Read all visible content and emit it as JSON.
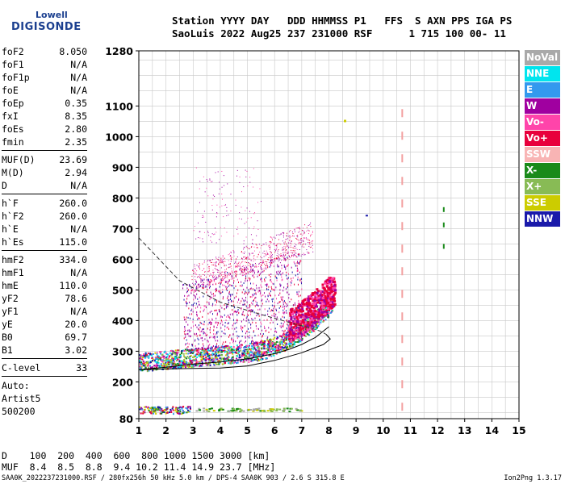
{
  "logo": {
    "line1": "Lowell",
    "line2": "DIGISONDE"
  },
  "header": {
    "line1": "Station YYYY DAY   DDD HHMMSS P1   FFS  S AXN PPS IGA PS",
    "line2": "SaoLuis 2022 Aug25 237 231000 RSF      1 715 100 00- 11"
  },
  "params": {
    "group1": [
      {
        "k": "foF2",
        "v": "8.050"
      },
      {
        "k": "foF1",
        "v": "N/A"
      },
      {
        "k": "foF1p",
        "v": "N/A"
      },
      {
        "k": "foE",
        "v": "N/A"
      },
      {
        "k": "foEp",
        "v": "0.35"
      },
      {
        "k": "fxI",
        "v": "8.35"
      },
      {
        "k": "foEs",
        "v": "2.80"
      },
      {
        "k": "fmin",
        "v": "2.35"
      }
    ],
    "group2": [
      {
        "k": "MUF(D)",
        "v": "23.69"
      },
      {
        "k": "M(D)",
        "v": "2.94"
      },
      {
        "k": "D",
        "v": "N/A"
      }
    ],
    "group3": [
      {
        "k": "h`F",
        "v": "260.0"
      },
      {
        "k": "h`F2",
        "v": "260.0"
      },
      {
        "k": "h`E",
        "v": "N/A"
      },
      {
        "k": "h`Es",
        "v": "115.0"
      }
    ],
    "group4": [
      {
        "k": "hmF2",
        "v": "334.0"
      },
      {
        "k": "hmF1",
        "v": "N/A"
      },
      {
        "k": "hmE",
        "v": "110.0"
      },
      {
        "k": "yF2",
        "v": "78.6"
      },
      {
        "k": "yF1",
        "v": "N/A"
      },
      {
        "k": "yE",
        "v": "20.0"
      },
      {
        "k": "B0",
        "v": "69.7"
      },
      {
        "k": "B1",
        "v": "3.02"
      }
    ],
    "group5": [
      {
        "k": "C-level",
        "v": "33"
      }
    ],
    "auto": [
      "Auto:",
      "Artist5",
      "500200"
    ]
  },
  "legend": [
    {
      "label": "NoVal",
      "color": "#a9a9a9"
    },
    {
      "label": "NNE",
      "color": "#00e5ee"
    },
    {
      "label": "E",
      "color": "#3399ee"
    },
    {
      "label": "W",
      "color": "#a000a0"
    },
    {
      "label": "Vo-",
      "color": "#ff44aa"
    },
    {
      "label": "Vo+",
      "color": "#e8003c"
    },
    {
      "label": "SSW",
      "color": "#f8b4b4"
    },
    {
      "label": "X-",
      "color": "#1a8a1a"
    },
    {
      "label": "X+",
      "color": "#88bb55"
    },
    {
      "label": "SSE",
      "color": "#cccc00"
    },
    {
      "label": "NNW",
      "color": "#1a1aaa"
    }
  ],
  "muf_table": {
    "line1": "D    100  200  400  600  800 1000 1500 3000 [km]",
    "line2": "MUF  8.4  8.5  8.8  9.4 10.2 11.4 14.9 23.7 [MHz]"
  },
  "footer": {
    "left": "SAA0K_2022237231000.RSF / 280fx256h 50 kHz 5.0 km / DPS-4 SAA0K 903 / 2.6 S 315.8 E",
    "right": "Ion2Png 1.3.17"
  },
  "chart_data": {
    "type": "scatter",
    "x_range": [
      1,
      15
    ],
    "y_range": [
      80,
      1280
    ],
    "x_ticks": [
      1,
      2,
      3,
      4,
      5,
      6,
      7,
      8,
      9,
      10,
      11,
      12,
      13,
      14,
      15
    ],
    "y_ticks": [
      80,
      200,
      300,
      400,
      500,
      600,
      700,
      800,
      900,
      1000,
      1100,
      1280
    ],
    "grid": true,
    "xlabel": "",
    "ylabel": "",
    "trace_lower": {
      "x": [
        1.0,
        2.0,
        3.0,
        4.0,
        5.0,
        6.0,
        6.5,
        7.0,
        7.5,
        8.0
      ],
      "y": [
        240,
        248,
        258,
        265,
        275,
        292,
        305,
        322,
        345,
        380
      ]
    },
    "model_profile": {
      "x": [
        1.0,
        2.5,
        4.0,
        5.5,
        6.5,
        7.0,
        7.4,
        7.7,
        7.9,
        8.05,
        7.8,
        7.0,
        6.0,
        5.0,
        4.0,
        3.0,
        2.0,
        1.0
      ],
      "y": [
        670,
        530,
        460,
        420,
        395,
        383,
        374,
        365,
        355,
        340,
        322,
        295,
        270,
        252,
        245,
        244,
        242,
        240
      ]
    },
    "model_profile_solid_upto_index": 8,
    "es_trace": {
      "x": [
        1.0,
        3.0,
        5.0,
        7.0
      ],
      "y": [
        110,
        112,
        112,
        113
      ]
    },
    "spread_f_band": {
      "x": [
        2.9,
        4.0,
        5.0,
        6.0,
        7.0,
        7.4
      ],
      "y": [
        520,
        545,
        570,
        600,
        640,
        690
      ]
    },
    "sse_point": {
      "x": 8.55,
      "y": 1055
    },
    "nnw_point": {
      "x": 9.35,
      "y": 745
    },
    "x_plus_points": {
      "x": [
        12.2,
        12.2,
        12.2
      ],
      "y": [
        650,
        720,
        770
      ]
    },
    "ssw_line_x": 10.7
  }
}
